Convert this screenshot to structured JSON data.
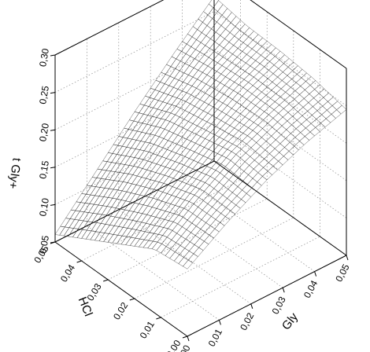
{
  "chart_data": {
    "type": "surface3d",
    "title": "",
    "xlabel": "Gly",
    "ylabel": "HCl",
    "zlabel": "t Gly+",
    "x_ticks": [
      "0,00",
      "0,01",
      "0,02",
      "0,03",
      "0,04",
      "0,05"
    ],
    "y_ticks": [
      "0,00",
      "0,01",
      "0,02",
      "0,03",
      "0,04",
      "0,05"
    ],
    "z_ticks": [
      "0,05",
      "0,10",
      "0,15",
      "0,20",
      "0,25",
      "0,30"
    ],
    "xlim": [
      0,
      0.05
    ],
    "ylim": [
      0,
      0.05
    ],
    "zlim": [
      0.05,
      0.3
    ],
    "grid": true,
    "surface": {
      "x": [
        0.0,
        0.0125,
        0.025,
        0.0375,
        0.05
      ],
      "y": [
        0.0,
        0.0125,
        0.025,
        0.0375,
        0.05
      ],
      "z_rows_by_y": [
        [
          0.14,
          0.175,
          0.205,
          0.228,
          0.245
        ],
        [
          0.135,
          0.175,
          0.21,
          0.235,
          0.255
        ],
        [
          0.11,
          0.16,
          0.2,
          0.235,
          0.26
        ],
        [
          0.085,
          0.14,
          0.19,
          0.23,
          0.262
        ],
        [
          0.06,
          0.115,
          0.17,
          0.222,
          0.27
        ]
      ]
    },
    "colors": {
      "surface_light": "#e8e8e8",
      "surface_dark": "#3a3a3a",
      "mesh": "#1a1a1a",
      "grid": "#8a8a8a"
    }
  }
}
